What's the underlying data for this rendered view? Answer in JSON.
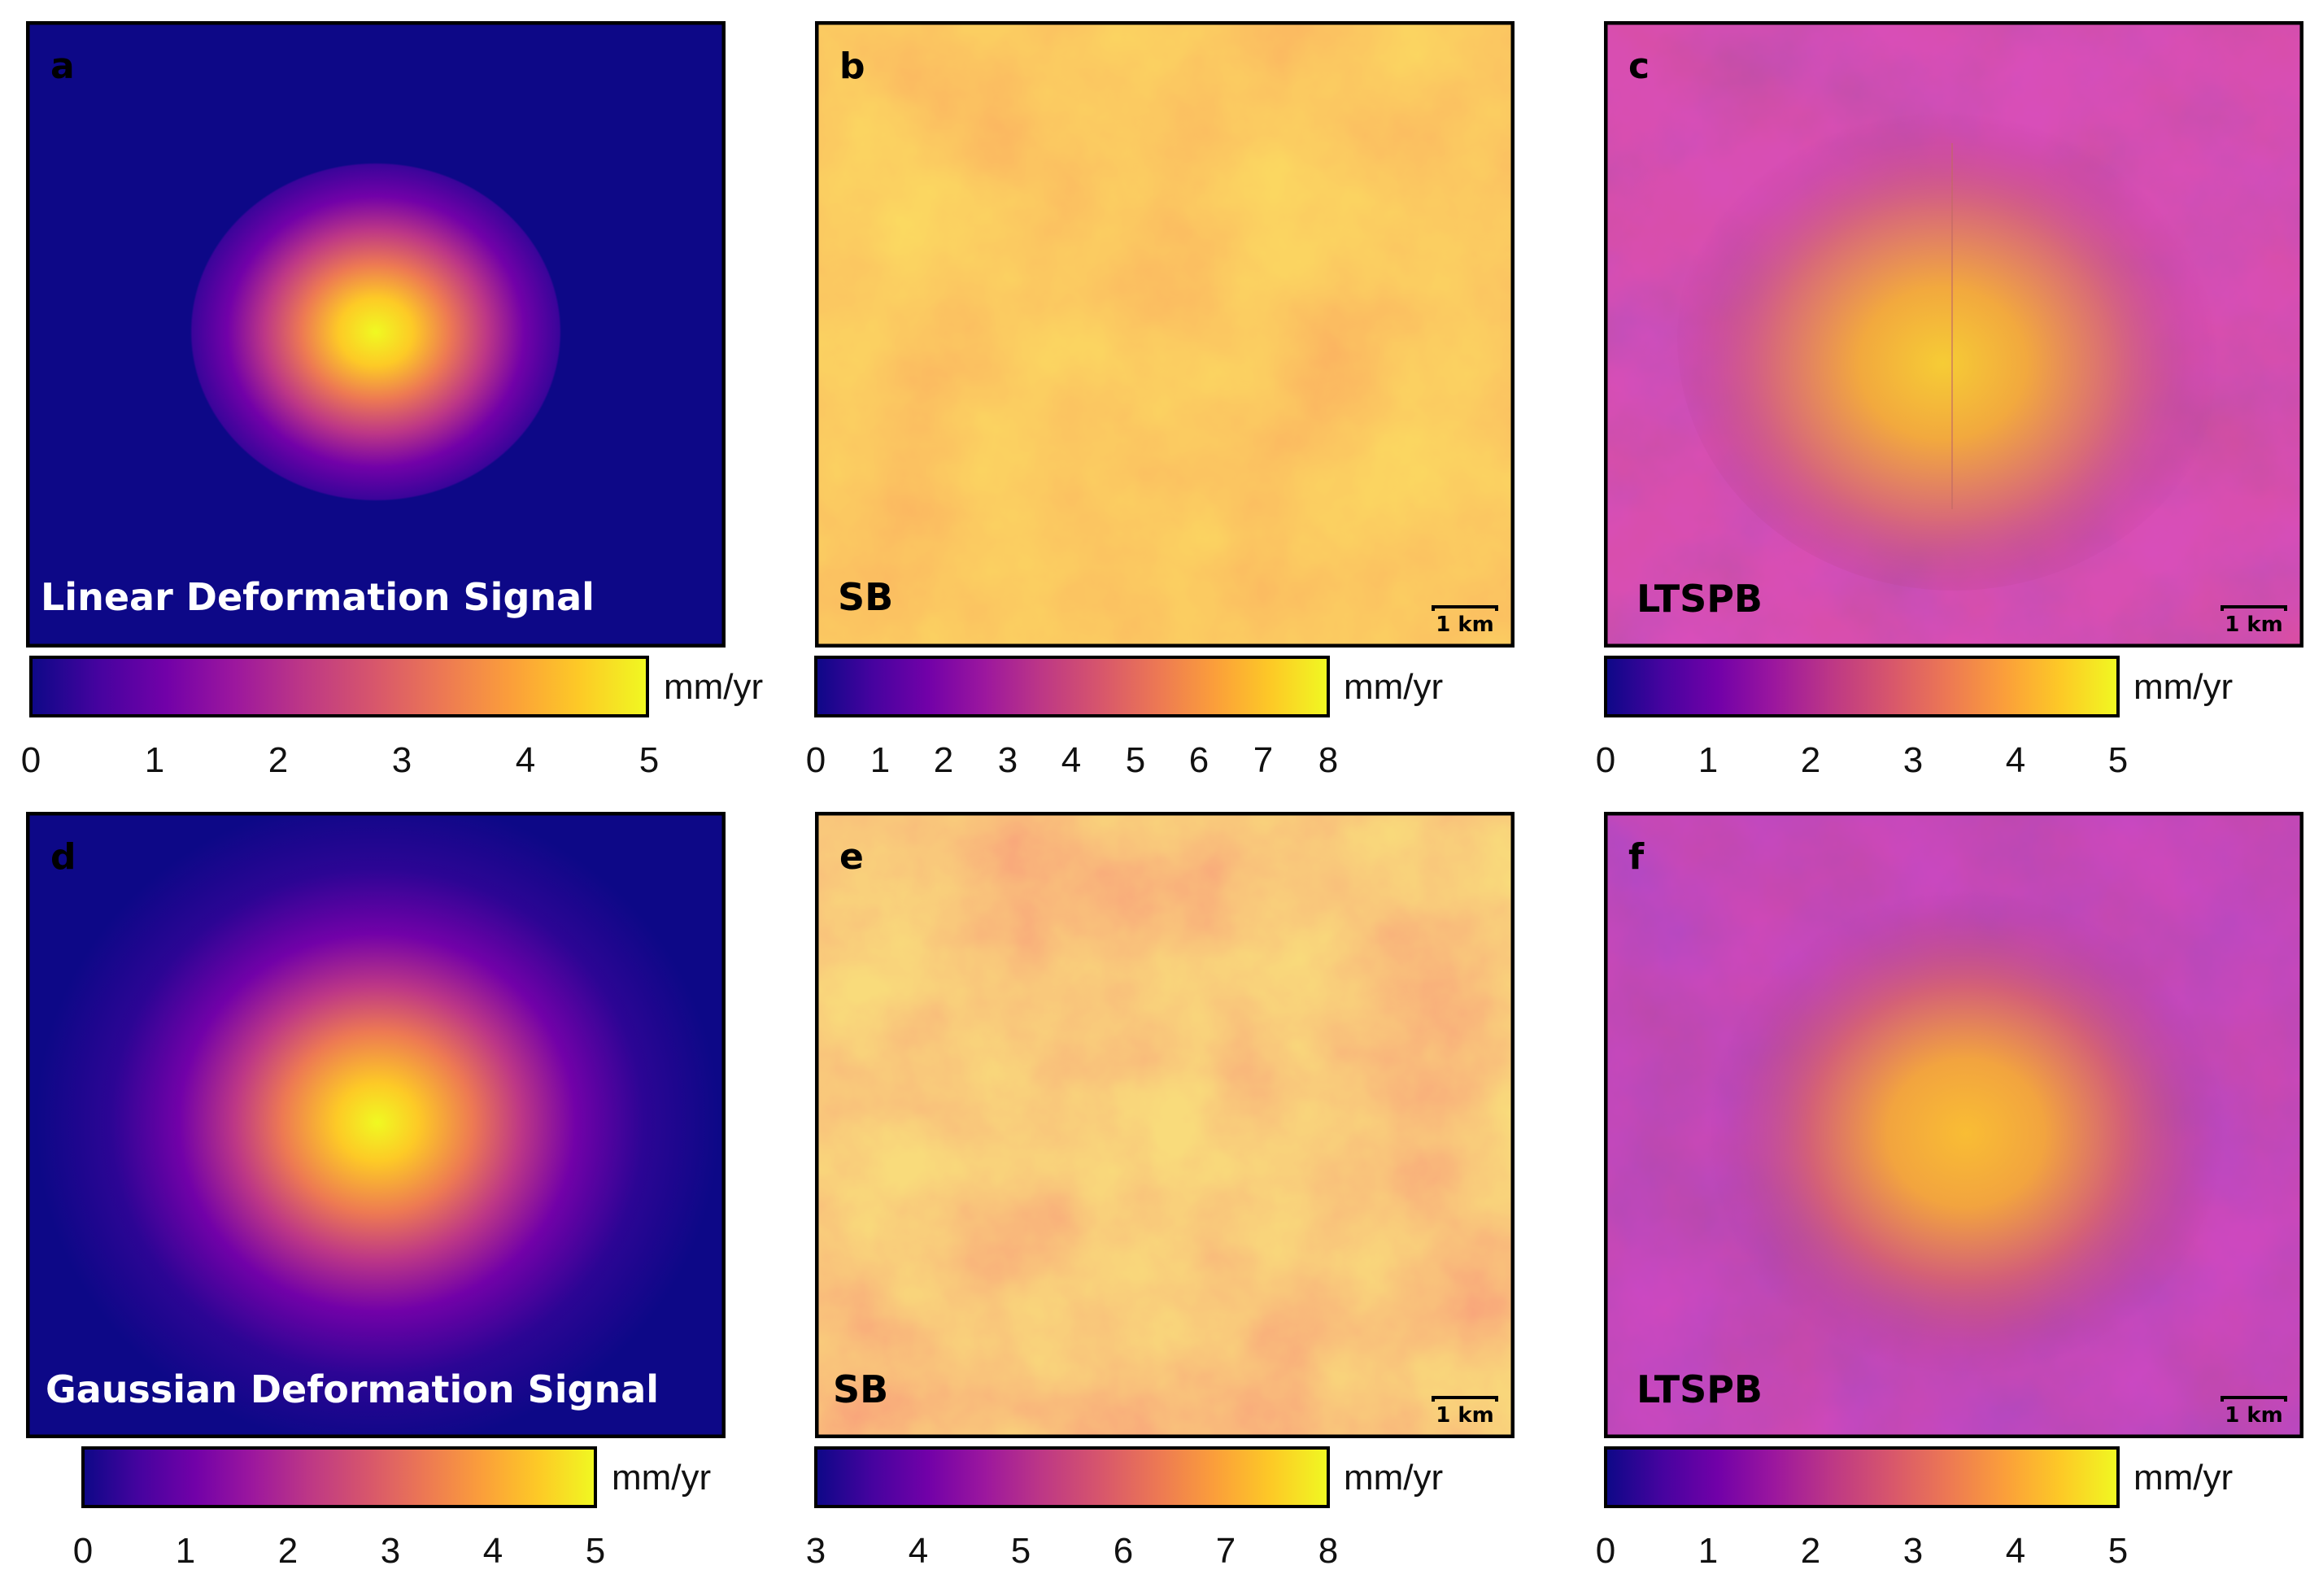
{
  "colors": {
    "plasma": [
      "#0d0887",
      "#46039f",
      "#7201a8",
      "#9c179e",
      "#bd3786",
      "#d8576b",
      "#ed7953",
      "#fb9f3a",
      "#fdca26",
      "#f0f921"
    ]
  },
  "panels": [
    {
      "letter": "a",
      "label": "Linear Deformation Signal",
      "unit": "mm/yr",
      "ticks": [
        "0",
        "1",
        "2",
        "3",
        "4",
        "5"
      ],
      "range": [
        0,
        5
      ],
      "scale_label": "",
      "field": "linear"
    },
    {
      "letter": "b",
      "label": "SB",
      "unit": "mm/yr",
      "ticks": [
        "0",
        "1",
        "2",
        "3",
        "4",
        "5",
        "6",
        "7",
        "8"
      ],
      "range": [
        0,
        8
      ],
      "scale_label": "1 km",
      "field": "noise_b"
    },
    {
      "letter": "c",
      "label": "LTSPB",
      "unit": "mm/yr",
      "ticks": [
        "0",
        "1",
        "2",
        "3",
        "4",
        "5"
      ],
      "range": [
        0,
        5
      ],
      "scale_label": "1 km",
      "field": "recon_c"
    },
    {
      "letter": "d",
      "label": "Gaussian Deformation Signal",
      "unit": "mm/yr",
      "ticks": [
        "0",
        "1",
        "2",
        "3",
        "4",
        "5"
      ],
      "range": [
        0,
        5
      ],
      "scale_label": "",
      "field": "gaussian"
    },
    {
      "letter": "e",
      "label": "SB",
      "unit": "mm/yr",
      "ticks": [
        "3",
        "4",
        "5",
        "6",
        "7",
        "8"
      ],
      "range": [
        3,
        8
      ],
      "scale_label": "1 km",
      "field": "noise_e"
    },
    {
      "letter": "f",
      "label": "LTSPB",
      "unit": "mm/yr",
      "ticks": [
        "0",
        "1",
        "2",
        "3",
        "4",
        "5"
      ],
      "range": [
        0,
        5
      ],
      "scale_label": "1 km",
      "field": "recon_f"
    }
  ]
}
